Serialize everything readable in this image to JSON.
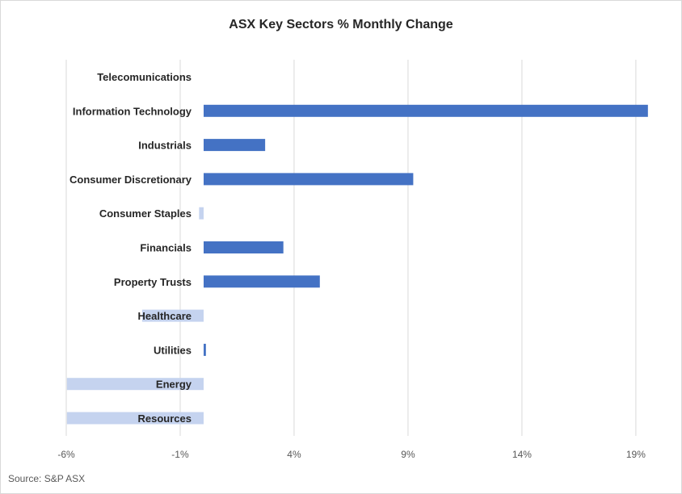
{
  "chart_data": {
    "type": "bar",
    "orientation": "horizontal",
    "title": "ASX Key Sectors % Monthly Change",
    "source": "Source: S&P ASX",
    "categories": [
      "Telecomunications",
      "Information Technology",
      "Industrials",
      "Consumer Discretionary",
      "Consumer Staples",
      "Financials",
      "Property Trusts",
      "Healthcare",
      "Utilities",
      "Energy",
      "Resources"
    ],
    "values": [
      0.0,
      19.5,
      2.7,
      9.2,
      -0.2,
      3.5,
      5.1,
      -2.7,
      0.1,
      -6.0,
      -6.0
    ],
    "xlim": [
      -6,
      19.5
    ],
    "xticks": [
      -6,
      -1,
      4,
      9,
      14,
      19
    ],
    "xtick_labels": [
      "-6%",
      "-1%",
      "4%",
      "9%",
      "14%",
      "19%"
    ],
    "colors": {
      "positive": "#4472c4",
      "negative": "#c5d3ef",
      "grid": "#d9d9d9"
    },
    "grid": "vertical",
    "legend": "none"
  }
}
